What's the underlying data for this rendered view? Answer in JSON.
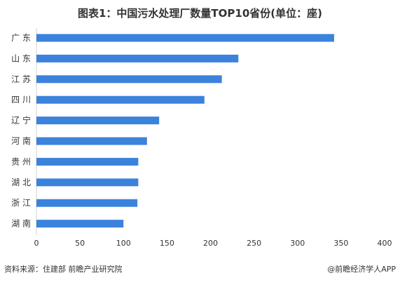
{
  "chart_data": {
    "type": "bar",
    "orientation": "horizontal",
    "title": "图表1：中国污水处理厂数量TOP10省份(单位：座)",
    "categories": [
      "广 东",
      "山 东",
      "江 苏",
      "四 川",
      "辽 宁",
      "河 南",
      "贵 州",
      "湖 北",
      "浙 江",
      "湖 南"
    ],
    "values": [
      342,
      232,
      213,
      193,
      141,
      127,
      117,
      117,
      116,
      100
    ],
    "xlim": [
      0,
      400
    ],
    "xticks": [
      "0",
      "50",
      "100",
      "150",
      "200",
      "250",
      "300",
      "350",
      "400"
    ],
    "bar_color": "#3B82DC",
    "grid": false
  },
  "source": "资料来源：住建部 前瞻产业研究院",
  "brand": "@前瞻经济学人APP"
}
